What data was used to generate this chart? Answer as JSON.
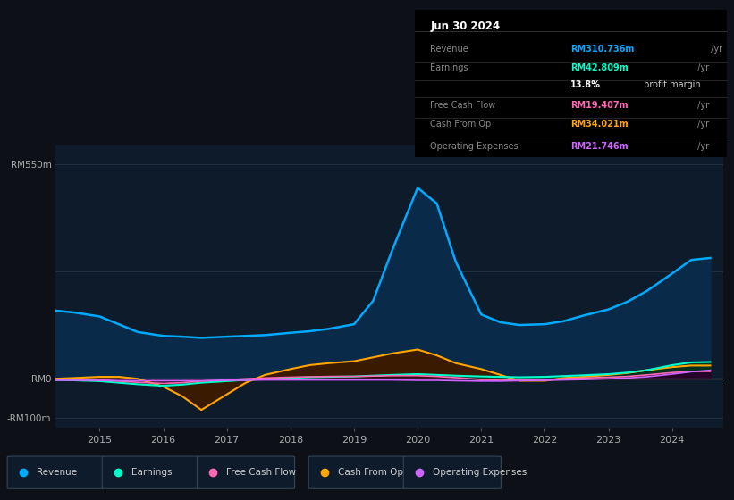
{
  "bg_color": "#0d1117",
  "chart_bg": "#0d1b2a",
  "title_box": {
    "date": "Jun 30 2024",
    "rows": [
      {
        "label": "Revenue",
        "value": "RM310.736m",
        "color": "#00aaff",
        "suffix": " /yr"
      },
      {
        "label": "Earnings",
        "value": "RM42.809m",
        "color": "#00ffcc",
        "suffix": " /yr"
      },
      {
        "label": "",
        "value": "13.8%",
        "color": "#ffffff",
        "suffix": " profit margin"
      },
      {
        "label": "Free Cash Flow",
        "value": "RM19.407m",
        "color": "#ff69b4",
        "suffix": " /yr"
      },
      {
        "label": "Cash From Op",
        "value": "RM34.021m",
        "color": "#ffa500",
        "suffix": " /yr"
      },
      {
        "label": "Operating Expenses",
        "value": "RM21.746m",
        "color": "#cc66ff",
        "suffix": " /yr"
      }
    ]
  },
  "ylim": [
    -125,
    600
  ],
  "ytick_positions": [
    -100,
    0,
    550
  ],
  "ytick_labels": [
    "-RM100m",
    "RM0",
    "RM550m"
  ],
  "hline_positions": [
    -100,
    0,
    275,
    550
  ],
  "years": [
    2014.3,
    2014.6,
    2015.0,
    2015.3,
    2015.6,
    2016.0,
    2016.3,
    2016.6,
    2017.0,
    2017.3,
    2017.6,
    2018.0,
    2018.3,
    2018.6,
    2019.0,
    2019.3,
    2019.6,
    2020.0,
    2020.3,
    2020.6,
    2021.0,
    2021.3,
    2021.6,
    2022.0,
    2022.3,
    2022.6,
    2023.0,
    2023.3,
    2023.6,
    2024.0,
    2024.3,
    2024.6
  ],
  "revenue": [
    175,
    170,
    160,
    140,
    120,
    110,
    108,
    105,
    108,
    110,
    112,
    118,
    122,
    128,
    140,
    200,
    330,
    490,
    450,
    300,
    165,
    145,
    138,
    140,
    148,
    162,
    178,
    198,
    225,
    270,
    305,
    310
  ],
  "earnings": [
    -3,
    -4,
    -6,
    -10,
    -14,
    -18,
    -15,
    -10,
    -6,
    -3,
    -1,
    2,
    4,
    5,
    6,
    8,
    10,
    12,
    10,
    8,
    6,
    5,
    4,
    5,
    7,
    9,
    12,
    16,
    22,
    35,
    42,
    43
  ],
  "free_cash_flow": [
    -1,
    -2,
    -3,
    -6,
    -9,
    -12,
    -10,
    -6,
    -3,
    0,
    2,
    4,
    5,
    6,
    6,
    7,
    8,
    8,
    6,
    3,
    -2,
    -4,
    -2,
    -3,
    0,
    2,
    4,
    6,
    10,
    16,
    19,
    19
  ],
  "cash_from_op": [
    0,
    2,
    5,
    5,
    0,
    -20,
    -45,
    -80,
    -40,
    -10,
    10,
    25,
    35,
    40,
    45,
    55,
    65,
    75,
    60,
    40,
    25,
    10,
    -5,
    -5,
    2,
    5,
    10,
    15,
    22,
    30,
    34,
    34
  ],
  "operating_expenses": [
    -4,
    -4,
    -4,
    -5,
    -5,
    -5,
    -5,
    -5,
    -4,
    -4,
    -3,
    -3,
    -3,
    -3,
    -3,
    -3,
    -3,
    -4,
    -4,
    -5,
    -6,
    -6,
    -5,
    -4,
    -3,
    -2,
    0,
    2,
    5,
    12,
    18,
    22
  ],
  "line_colors": {
    "revenue": "#00aaff",
    "earnings": "#00ffcc",
    "free_cash_flow": "#ff69b4",
    "cash_from_op": "#ffa500",
    "operating_expenses": "#cc66ff"
  },
  "fill_colors": {
    "revenue": "#0a2a4a",
    "earnings": "#003322",
    "free_cash_flow": "#3a0011",
    "cash_from_op": "#3a1a00",
    "operating_expenses": "#220033"
  },
  "legend_items": [
    {
      "label": "Revenue",
      "color": "#00aaff"
    },
    {
      "label": "Earnings",
      "color": "#00ffcc"
    },
    {
      "label": "Free Cash Flow",
      "color": "#ff69b4"
    },
    {
      "label": "Cash From Op",
      "color": "#ffa500"
    },
    {
      "label": "Operating Expenses",
      "color": "#cc66ff"
    }
  ],
  "xtick_years": [
    2015,
    2016,
    2017,
    2018,
    2019,
    2020,
    2021,
    2022,
    2023,
    2024
  ],
  "xlim": [
    2014.3,
    2024.8
  ]
}
